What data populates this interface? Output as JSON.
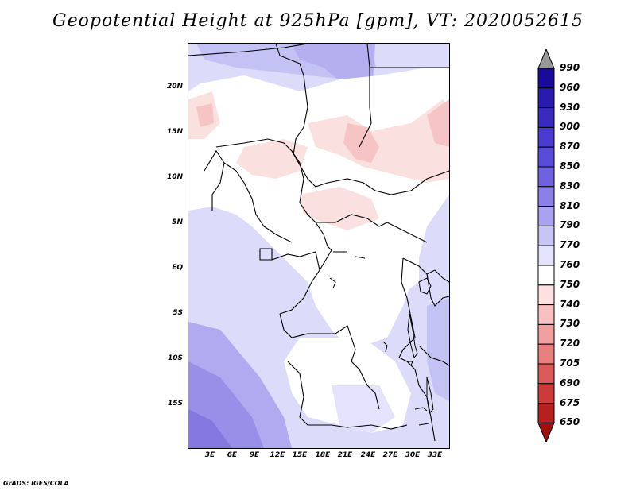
{
  "title": "Geopotential Height at 925hPa [gpm], VT: 2020052615",
  "credit": "GrADS: IGES/COLA",
  "lat_labels": [
    "20N",
    "15N",
    "10N",
    "5N",
    "EQ",
    "5S",
    "10S",
    "15S"
  ],
  "lon_labels": [
    "3E",
    "6E",
    "9E",
    "12E",
    "15E",
    "18E",
    "21E",
    "24E",
    "27E",
    "30E",
    "33E"
  ],
  "colorbar": {
    "levels": [
      "990",
      "960",
      "930",
      "900",
      "870",
      "850",
      "830",
      "810",
      "790",
      "770",
      "760",
      "750",
      "740",
      "730",
      "720",
      "705",
      "690",
      "675",
      "650"
    ],
    "colors": [
      "#9a9a9a",
      "#1a0a9a",
      "#2a1ab0",
      "#3a2ac0",
      "#4a3ad0",
      "#5a4ad8",
      "#6e62e0",
      "#8a80e8",
      "#a8a2f0",
      "#c8c4f6",
      "#e4e2fc",
      "#ffffff",
      "#fde0e0",
      "#f8c0c0",
      "#f0a0a0",
      "#e88080",
      "#dc5a5a",
      "#cc3a3a",
      "#b82020",
      "#a01010"
    ]
  }
}
